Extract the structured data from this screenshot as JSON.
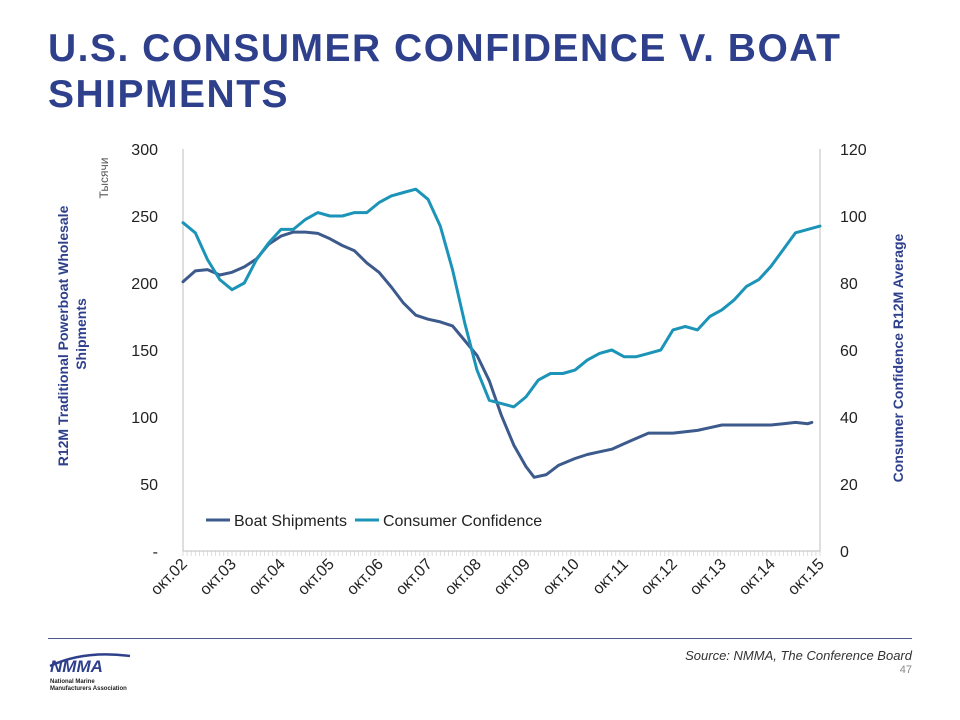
{
  "slide": {
    "title": "U.S. CONSUMER CONFIDENCE V. BOAT SHIPMENTS",
    "source": "Source: NMMA, The Conference Board",
    "page_number": "47"
  },
  "logo": {
    "text": "NMMA",
    "subtitle_lines": [
      "National Marine",
      "Manufacturers Association"
    ]
  },
  "colors": {
    "title": "#2e3f8c",
    "boat_shipments": "#3d5a8c",
    "consumer_confidence": "#1b94b8",
    "axis_title": "#2e3f8c"
  },
  "chart_data": {
    "type": "line",
    "y_unit_label": "Тысячи",
    "y_left": {
      "label": "R12M Traditional Powerboat Wholesale Shipments",
      "label_lines": [
        "R12M Traditional Powerboat Wholesale",
        "Shipments"
      ],
      "range": [
        0,
        300
      ],
      "ticks": [
        {
          "value": 0,
          "label": "-"
        },
        {
          "value": 50,
          "label": "50"
        },
        {
          "value": 100,
          "label": "100"
        },
        {
          "value": 150,
          "label": "150"
        },
        {
          "value": 200,
          "label": "200"
        },
        {
          "value": 250,
          "label": "250"
        },
        {
          "value": 300,
          "label": "300"
        }
      ]
    },
    "y_right": {
      "label": "Consumer Confidence R12M Average",
      "range": [
        0,
        120
      ],
      "ticks": [
        {
          "value": 0,
          "label": "0"
        },
        {
          "value": 20,
          "label": "20"
        },
        {
          "value": 40,
          "label": "40"
        },
        {
          "value": 60,
          "label": "60"
        },
        {
          "value": 80,
          "label": "80"
        },
        {
          "value": 100,
          "label": "100"
        },
        {
          "value": 120,
          "label": "120"
        }
      ]
    },
    "x_axis": {
      "range": [
        "2002-10",
        "2015-10"
      ],
      "tick_labels": [
        "окт.02",
        "окт.03",
        "окт.04",
        "окт.05",
        "окт.06",
        "окт.07",
        "окт.08",
        "окт.09",
        "окт.10",
        "окт.11",
        "окт.12",
        "окт.13",
        "окт.14",
        "окт.15"
      ],
      "tick_dates": [
        "2002-10",
        "2003-10",
        "2004-10",
        "2005-10",
        "2006-10",
        "2007-10",
        "2008-10",
        "2009-10",
        "2010-10",
        "2011-10",
        "2012-10",
        "2013-10",
        "2014-10",
        "2015-10"
      ]
    },
    "legend": {
      "position": "bottom"
    },
    "grid": false,
    "series": [
      {
        "name": "Boat Shipments",
        "axis": "left",
        "points": [
          [
            "2002-10",
            201
          ],
          [
            "2003-01",
            209
          ],
          [
            "2003-04",
            210
          ],
          [
            "2003-07",
            206
          ],
          [
            "2003-10",
            208
          ],
          [
            "2004-01",
            212
          ],
          [
            "2004-04",
            218
          ],
          [
            "2004-07",
            229
          ],
          [
            "2004-10",
            235
          ],
          [
            "2005-01",
            238
          ],
          [
            "2005-04",
            238
          ],
          [
            "2005-07",
            237
          ],
          [
            "2005-10",
            233
          ],
          [
            "2006-01",
            228
          ],
          [
            "2006-04",
            224
          ],
          [
            "2006-07",
            215
          ],
          [
            "2006-10",
            208
          ],
          [
            "2007-01",
            197
          ],
          [
            "2007-04",
            185
          ],
          [
            "2007-07",
            176
          ],
          [
            "2007-10",
            173
          ],
          [
            "2008-01",
            171
          ],
          [
            "2008-04",
            168
          ],
          [
            "2008-07",
            157
          ],
          [
            "2008-10",
            146
          ],
          [
            "2009-01",
            127
          ],
          [
            "2009-04",
            101
          ],
          [
            "2009-07",
            79
          ],
          [
            "2009-10",
            63
          ],
          [
            "2009-12",
            55
          ],
          [
            "2010-03",
            57
          ],
          [
            "2010-06",
            64
          ],
          [
            "2010-10",
            69
          ],
          [
            "2011-01",
            72
          ],
          [
            "2011-04",
            74
          ],
          [
            "2011-07",
            76
          ],
          [
            "2011-10",
            80
          ],
          [
            "2012-01",
            84
          ],
          [
            "2012-04",
            88
          ],
          [
            "2012-07",
            88
          ],
          [
            "2012-10",
            88
          ],
          [
            "2013-01",
            89
          ],
          [
            "2013-04",
            90
          ],
          [
            "2013-07",
            92
          ],
          [
            "2013-10",
            94
          ],
          [
            "2014-01",
            94
          ],
          [
            "2014-04",
            94
          ],
          [
            "2014-07",
            94
          ],
          [
            "2014-10",
            94
          ],
          [
            "2015-01",
            95
          ],
          [
            "2015-04",
            96
          ],
          [
            "2015-07",
            95
          ],
          [
            "2015-08",
            96
          ]
        ]
      },
      {
        "name": "Consumer Confidence",
        "axis": "right",
        "points": [
          [
            "2002-10",
            98
          ],
          [
            "2003-01",
            95
          ],
          [
            "2003-04",
            87
          ],
          [
            "2003-07",
            81
          ],
          [
            "2003-10",
            78
          ],
          [
            "2004-01",
            80
          ],
          [
            "2004-04",
            87
          ],
          [
            "2004-07",
            92
          ],
          [
            "2004-10",
            96
          ],
          [
            "2005-01",
            96
          ],
          [
            "2005-04",
            99
          ],
          [
            "2005-07",
            101
          ],
          [
            "2005-10",
            100
          ],
          [
            "2006-01",
            100
          ],
          [
            "2006-04",
            101
          ],
          [
            "2006-07",
            101
          ],
          [
            "2006-10",
            104
          ],
          [
            "2007-01",
            106
          ],
          [
            "2007-04",
            107
          ],
          [
            "2007-07",
            108
          ],
          [
            "2007-10",
            105
          ],
          [
            "2008-01",
            97
          ],
          [
            "2008-04",
            84
          ],
          [
            "2008-07",
            68
          ],
          [
            "2008-10",
            54
          ],
          [
            "2009-01",
            45
          ],
          [
            "2009-04",
            44
          ],
          [
            "2009-07",
            43
          ],
          [
            "2009-10",
            46
          ],
          [
            "2010-01",
            51
          ],
          [
            "2010-04",
            53
          ],
          [
            "2010-07",
            53
          ],
          [
            "2010-10",
            54
          ],
          [
            "2011-01",
            57
          ],
          [
            "2011-04",
            59
          ],
          [
            "2011-07",
            60
          ],
          [
            "2011-10",
            58
          ],
          [
            "2012-01",
            58
          ],
          [
            "2012-04",
            59
          ],
          [
            "2012-07",
            60
          ],
          [
            "2012-10",
            66
          ],
          [
            "2013-01",
            67
          ],
          [
            "2013-04",
            66
          ],
          [
            "2013-07",
            70
          ],
          [
            "2013-10",
            72
          ],
          [
            "2014-01",
            75
          ],
          [
            "2014-04",
            79
          ],
          [
            "2014-07",
            81
          ],
          [
            "2014-10",
            85
          ],
          [
            "2015-01",
            90
          ],
          [
            "2015-04",
            95
          ],
          [
            "2015-07",
            96
          ],
          [
            "2015-10",
            97
          ]
        ]
      }
    ]
  }
}
